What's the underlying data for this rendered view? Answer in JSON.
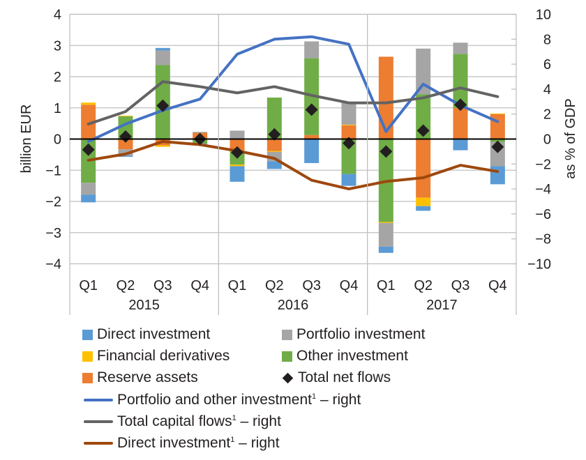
{
  "chart_data": {
    "type": "bar",
    "subtype": "stacked-bar-with-lines",
    "title": "",
    "ylabel": "billion  EUR",
    "y2label": "as % of GDP",
    "ylim": [
      -4,
      4
    ],
    "y2lim": [
      -10,
      10
    ],
    "yticks": [
      "4",
      "3",
      "2",
      "1",
      "0",
      "−1",
      "−2",
      "−3",
      "−4"
    ],
    "y2ticks": [
      "10",
      "8",
      "6",
      "4",
      "2",
      "0",
      "−2",
      "−4",
      "−6",
      "−8",
      "−10"
    ],
    "grid": true,
    "categories": [
      "Q1",
      "Q2",
      "Q3",
      "Q4",
      "Q1",
      "Q2",
      "Q3",
      "Q4",
      "Q1",
      "Q2",
      "Q3",
      "Q4"
    ],
    "groups": [
      "2015",
      "2016",
      "2017"
    ],
    "bar_series": [
      {
        "name": "Direct investment",
        "color": "#5B9BD5",
        "values": [
          -0.25,
          -0.04,
          0.08,
          -0.05,
          -0.5,
          -0.25,
          -0.77,
          -0.38,
          -0.2,
          -0.15,
          -0.36,
          -0.58
        ]
      },
      {
        "name": "Portfolio investment",
        "color": "#A5A5A5",
        "values": [
          -0.38,
          -0.2,
          0.47,
          0.03,
          0.27,
          -0.3,
          0.54,
          0.7,
          -0.76,
          1.47,
          0.36,
          -0.78
        ]
      },
      {
        "name": "Financial derivatives",
        "color": "#FFC000",
        "values": [
          0.07,
          0.02,
          -0.05,
          0.0,
          -0.05,
          -0.03,
          0.0,
          0.02,
          -0.03,
          -0.27,
          0.0,
          0.02
        ]
      },
      {
        "name": "Other investment",
        "color": "#70AD47",
        "values": [
          -1.4,
          0.73,
          2.37,
          -0.15,
          -0.42,
          1.33,
          2.46,
          -1.12,
          -2.66,
          1.43,
          1.73,
          -0.09
        ]
      },
      {
        "name": "Reserve assets",
        "color": "#ED7D31",
        "values": [
          1.1,
          -0.33,
          -0.2,
          0.2,
          -0.4,
          -0.38,
          0.13,
          0.44,
          2.64,
          -1.88,
          1.0,
          0.8
        ]
      }
    ],
    "stack_order": [
      "Reserve assets",
      "Other investment",
      "Financial derivatives",
      "Portfolio investment",
      "Direct investment"
    ],
    "net_series": {
      "name": "Total net flows",
      "color": "#231F20",
      "values": [
        -0.34,
        0.08,
        1.07,
        0.0,
        -0.43,
        0.15,
        0.94,
        -0.13,
        -0.4,
        0.27,
        1.1,
        -0.25
      ]
    },
    "line_series": [
      {
        "name": "Portfolio and other investment",
        "sup": "1",
        "suffix": " – right",
        "color": "#4472C4",
        "axis": "right",
        "values": [
          -0.2,
          1.2,
          2.3,
          3.2,
          6.8,
          8.0,
          8.2,
          7.6,
          0.6,
          4.4,
          2.7,
          1.4
        ]
      },
      {
        "name": "Total capital flows",
        "sup": "1",
        "suffix": " – right",
        "color": "#636363",
        "axis": "right",
        "values": [
          1.2,
          2.2,
          4.6,
          4.2,
          3.7,
          4.2,
          3.5,
          2.9,
          2.9,
          3.3,
          4.1,
          3.4
        ]
      },
      {
        "name": "Direct investment",
        "sup": "1",
        "suffix": " – right",
        "color": "#9E480E",
        "axis": "right",
        "values": [
          -1.7,
          -1.2,
          -0.2,
          -0.45,
          -0.95,
          -1.55,
          -3.3,
          -4.0,
          -3.4,
          -3.1,
          -2.1,
          -2.6
        ]
      }
    ],
    "legend_placement": "bottom"
  },
  "legend": {
    "bars": [
      {
        "label": "Direct investment",
        "color": "#5B9BD5"
      },
      {
        "label": "Portfolio investment",
        "color": "#A5A5A5"
      },
      {
        "label": "Financial derivatives",
        "color": "#FFC000"
      },
      {
        "label": "Other investment",
        "color": "#70AD47"
      },
      {
        "label": "Reserve assets",
        "color": "#ED7D31"
      },
      {
        "label": "Total net flows",
        "marker": "diamond"
      }
    ],
    "lines": [
      {
        "label": "Portfolio and other investment",
        "sup": "1",
        "suffix": " – right",
        "color": "#4472C4"
      },
      {
        "label": "Total capital flows",
        "sup": "1",
        "suffix": " – right",
        "color": "#636363"
      },
      {
        "label": "Direct investment",
        "sup": "1",
        "suffix": " – right",
        "color": "#9E480E"
      }
    ]
  }
}
